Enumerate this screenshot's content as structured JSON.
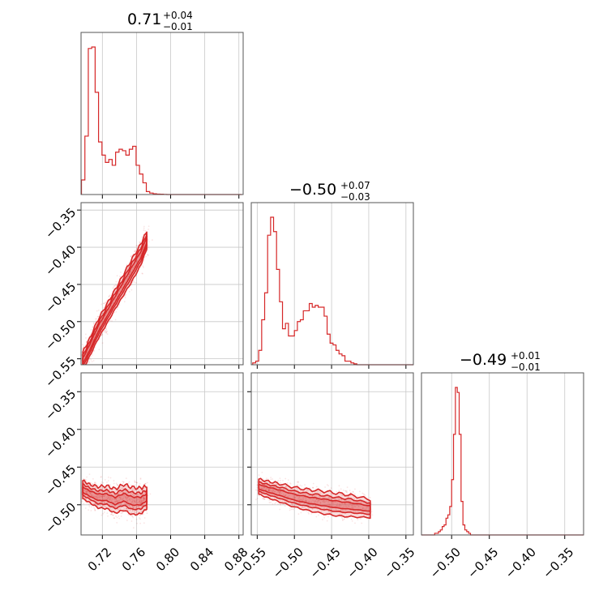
{
  "chart_data": {
    "type": "corner",
    "color": "#d62728",
    "grid": true,
    "parameters": [
      {
        "title": "0.71",
        "upper_err": "+0.04",
        "lower_err": "−0.01",
        "range": [
          0.695,
          0.885
        ],
        "ticks": [
          0.72,
          0.76,
          0.8,
          0.84,
          0.88
        ],
        "tick_labels": [
          "0.72",
          "0.76",
          "0.80",
          "0.84",
          "0.88"
        ]
      },
      {
        "title": "−0.50",
        "upper_err": "+0.07",
        "lower_err": "−0.03",
        "range": [
          -0.558,
          -0.34
        ],
        "ticks": [
          -0.55,
          -0.5,
          -0.45,
          -0.4,
          -0.35
        ],
        "tick_labels": [
          "−0.55",
          "−0.50",
          "−0.45",
          "−0.40",
          "−0.35"
        ]
      },
      {
        "title": "−0.49",
        "upper_err": "+0.01",
        "lower_err": "−0.01",
        "range": [
          -0.54,
          -0.325
        ],
        "ticks": [
          -0.5,
          -0.45,
          -0.4,
          -0.35
        ],
        "tick_labels": [
          "−0.50",
          "−0.45",
          "−0.40",
          "−0.35"
        ]
      }
    ],
    "histograms": [
      {
        "param": 0,
        "edges_start": 0.6955,
        "bin_width": 0.004,
        "counts": [
          10,
          40,
          100,
          101,
          70,
          36,
          27,
          22,
          24,
          20,
          29,
          31,
          30,
          27,
          31,
          33,
          20,
          14,
          8,
          2,
          1,
          0.5,
          0.3,
          0.2,
          0.1,
          0,
          0,
          0,
          0,
          0,
          0,
          0,
          0,
          0,
          0,
          0,
          0,
          0,
          0,
          0,
          0,
          0,
          0,
          0,
          0,
          0,
          0
        ]
      },
      {
        "param": 1,
        "edges_start": -0.556,
        "bin_width": 0.004,
        "counts": [
          1,
          2,
          8,
          25,
          40,
          72,
          82,
          74,
          53,
          35,
          20,
          23,
          16,
          16,
          19,
          24,
          25,
          30,
          30,
          34,
          32,
          33,
          32,
          32,
          27,
          17,
          12,
          11,
          8,
          6,
          5,
          2,
          2,
          1,
          0.5,
          0,
          0,
          0,
          0,
          0,
          0,
          0,
          0,
          0,
          0,
          0,
          0,
          0,
          0,
          0,
          0,
          0,
          0,
          0
        ]
      },
      {
        "param": 2,
        "edges_start": -0.54,
        "bin_width": 0.0025,
        "counts": [
          0,
          0,
          0,
          0,
          0,
          0,
          0,
          1,
          1,
          2,
          3,
          5,
          6,
          10,
          12,
          17,
          33,
          60,
          88,
          85,
          60,
          20,
          6,
          3,
          2,
          1,
          0,
          0,
          0,
          0,
          0,
          0,
          0,
          0,
          0,
          0,
          0,
          0,
          0,
          0,
          0,
          0,
          0,
          0,
          0,
          0,
          0,
          0,
          0,
          0,
          0,
          0,
          0,
          0,
          0,
          0,
          0,
          0,
          0,
          0,
          0,
          0,
          0,
          0,
          0,
          0,
          0,
          0,
          0,
          0,
          0,
          0,
          0,
          0,
          0,
          0,
          0,
          0,
          0,
          0,
          0,
          0,
          0,
          0,
          0,
          0
        ]
      }
    ],
    "joint_ridges": [
      {
        "x_param": 0,
        "y_param": 1,
        "ridge": [
          [
            0.697,
            -0.553
          ],
          [
            0.705,
            -0.535
          ],
          [
            0.715,
            -0.51
          ],
          [
            0.725,
            -0.49
          ],
          [
            0.735,
            -0.47
          ],
          [
            0.745,
            -0.45
          ],
          [
            0.755,
            -0.43
          ],
          [
            0.765,
            -0.41
          ],
          [
            0.772,
            -0.39
          ]
        ],
        "width": [
          0.012,
          0.012,
          0.013,
          0.013,
          0.013,
          0.014,
          0.015,
          0.014,
          0.012
        ]
      },
      {
        "x_param": 0,
        "y_param": 2,
        "ridge": [
          [
            0.697,
            -0.48
          ],
          [
            0.705,
            -0.485
          ],
          [
            0.715,
            -0.49
          ],
          [
            0.725,
            -0.49
          ],
          [
            0.735,
            -0.495
          ],
          [
            0.745,
            -0.49
          ],
          [
            0.755,
            -0.495
          ],
          [
            0.765,
            -0.495
          ],
          [
            0.772,
            -0.49
          ]
        ],
        "width": [
          0.012,
          0.012,
          0.014,
          0.015,
          0.016,
          0.017,
          0.018,
          0.017,
          0.015
        ]
      },
      {
        "x_param": 1,
        "y_param": 2,
        "ridge": [
          [
            -0.548,
            -0.476
          ],
          [
            -0.535,
            -0.48
          ],
          [
            -0.52,
            -0.484
          ],
          [
            -0.5,
            -0.49
          ],
          [
            -0.48,
            -0.494
          ],
          [
            -0.46,
            -0.497
          ],
          [
            -0.44,
            -0.5
          ],
          [
            -0.42,
            -0.502
          ],
          [
            -0.398,
            -0.505
          ]
        ],
        "width": [
          0.01,
          0.011,
          0.012,
          0.013,
          0.014,
          0.015,
          0.015,
          0.014,
          0.012
        ]
      }
    ]
  }
}
